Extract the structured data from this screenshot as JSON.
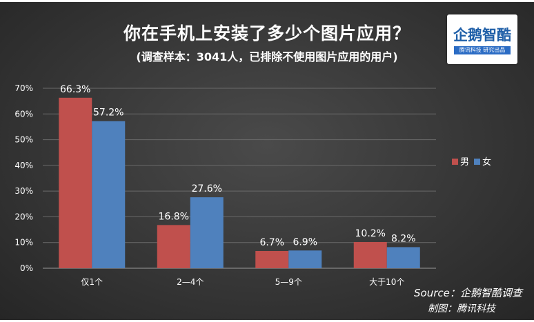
{
  "header": {
    "title": "你在手机上安装了多少个图片应用？",
    "subtitle": "(调查样本：3041人，已排除不使用图片应用的用户)"
  },
  "logo": {
    "name": "企鹅智酷",
    "tagline": "腾讯科技 研究出品"
  },
  "footer": {
    "source": "Source：企鹅智酷调查",
    "credit": "制图：腾讯科技"
  },
  "colors": {
    "male": "#c0504d",
    "female": "#4f81bd",
    "grid": "#6a6a6a"
  },
  "chart_data": {
    "type": "bar",
    "title": "你在手机上安装了多少个图片应用？",
    "subtitle": "(调查样本：3041人，已排除不使用图片应用的用户)",
    "categories": [
      "仅1个",
      "2—4个",
      "5—9个",
      "大于10个"
    ],
    "series": [
      {
        "name": "男",
        "values": [
          66.3,
          16.8,
          6.7,
          10.2
        ]
      },
      {
        "name": "女",
        "values": [
          57.2,
          27.6,
          6.9,
          8.2
        ]
      }
    ],
    "value_labels": [
      [
        "66.3%",
        "16.8%",
        "6.7%",
        "10.2%"
      ],
      [
        "57.2%",
        "27.6%",
        "6.9%",
        "8.2%"
      ]
    ],
    "ylim": [
      0,
      70
    ],
    "yticks": [
      "0%",
      "10%",
      "20%",
      "30%",
      "40%",
      "50%",
      "60%",
      "70%"
    ],
    "grid": true,
    "legend_position": "right"
  }
}
